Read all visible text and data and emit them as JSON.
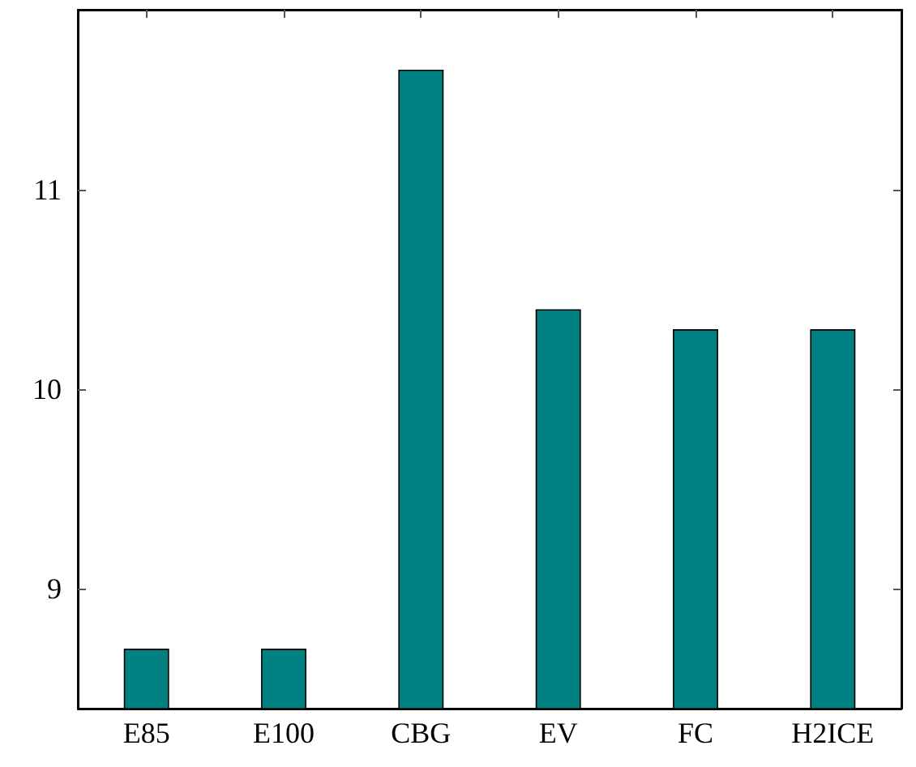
{
  "chart_data": {
    "type": "bar",
    "categories": [
      "E85",
      "E100",
      "CBG",
      "EV",
      "FC",
      "H2ICE"
    ],
    "values": [
      8.7,
      8.7,
      11.6,
      10.4,
      10.3,
      10.3
    ],
    "color": "#008080",
    "ylim": [
      8.4,
      11.9
    ],
    "yticks": [
      9,
      10,
      11
    ]
  }
}
